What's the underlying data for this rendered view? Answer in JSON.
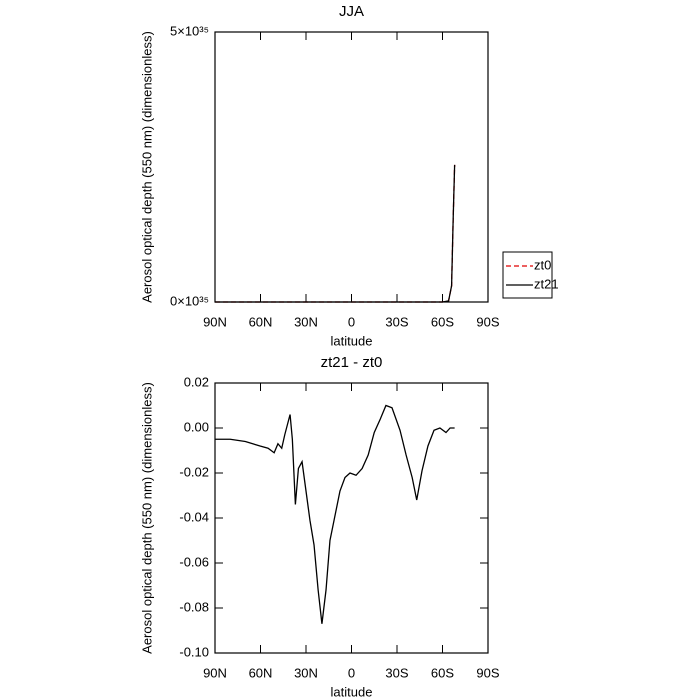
{
  "chart_data": [
    {
      "type": "line",
      "title": "JJA",
      "x_label": "latitude",
      "y_label": "Aerosol optical depth (550 nm) (dimensionless)",
      "xlim": [
        90,
        -90
      ],
      "xticks": [
        {
          "value": 90,
          "label": "90N"
        },
        {
          "value": 60,
          "label": "60N"
        },
        {
          "value": 30,
          "label": "30N"
        },
        0,
        {
          "value": -30,
          "label": "30S"
        },
        {
          "value": -60,
          "label": "60S"
        },
        {
          "value": -90,
          "label": "90S"
        }
      ],
      "ylim": [
        0,
        5e+35
      ],
      "yticks": [
        {
          "value": 0,
          "label": "0×10³⁵"
        },
        {
          "value": 5e+35,
          "label": "5×10³⁵"
        }
      ],
      "x": [
        90,
        60,
        30,
        0,
        -30,
        -60,
        -64,
        -66,
        -67,
        -68
      ],
      "series": [
        {
          "name": "zt0",
          "color": "#e00000",
          "line_style": "dashed",
          "values": [
            0,
            0,
            0,
            0,
            0,
            0,
            2e+33,
            3e+34,
            1.5e+35,
            2.54e+35
          ]
        },
        {
          "name": "zt21",
          "color": "#000000",
          "line_style": "solid",
          "values": [
            0,
            0,
            0,
            0,
            0,
            0,
            2e+33,
            3e+34,
            1.5e+35,
            2.54e+35
          ]
        }
      ],
      "legend": "right"
    },
    {
      "type": "line",
      "title": "zt21 - zt0",
      "x_label": "latitude",
      "y_label": "Aerosol optical depth (550 nm) (dimensionless)",
      "xlim": [
        90,
        -90
      ],
      "xticks": [
        {
          "value": 90,
          "label": "90N"
        },
        {
          "value": 60,
          "label": "60N"
        },
        {
          "value": 30,
          "label": "30N"
        },
        0,
        {
          "value": -30,
          "label": "30S"
        },
        {
          "value": -60,
          "label": "60S"
        },
        {
          "value": -90,
          "label": "90S"
        }
      ],
      "ylim": [
        -0.1,
        0.02
      ],
      "yticks": [
        {
          "value": -0.1,
          "label": "-0.10"
        },
        -0.08,
        -0.06,
        -0.04,
        -0.02,
        {
          "value": 0,
          "label": "0.00"
        },
        0.02
      ],
      "x": [
        90,
        80,
        70,
        60.3,
        55,
        51,
        48.5,
        46,
        44,
        40.5,
        39,
        37,
        35,
        32.6,
        30,
        27.4,
        24.7,
        22,
        19.5,
        16.8,
        14.2,
        11.5,
        7.6,
        4.3,
        1,
        -3,
        -7,
        -11,
        -15,
        -19,
        -22.7,
        -26.7,
        -32,
        -36,
        -40,
        -43,
        -46.5,
        -50.4,
        -54.4,
        -58.3,
        -62.3,
        -65,
        -68
      ],
      "series": [
        {
          "color": "#000000",
          "line_style": "solid",
          "values": [
            -0.005,
            -0.005,
            -0.006,
            -0.008,
            -0.009,
            -0.011,
            -0.007,
            -0.009,
            -0.003,
            0.006,
            -0.005,
            -0.034,
            -0.018,
            -0.015,
            -0.028,
            -0.041,
            -0.052,
            -0.072,
            -0.087,
            -0.072,
            -0.05,
            -0.041,
            -0.028,
            -0.022,
            -0.02,
            -0.021,
            -0.018,
            -0.012,
            -0.002,
            0.004,
            0.01,
            0.009,
            -0.001,
            -0.012,
            -0.022,
            -0.032,
            -0.019,
            -0.008,
            -0.001,
            0,
            -0.002,
            0,
            0
          ]
        }
      ]
    }
  ]
}
